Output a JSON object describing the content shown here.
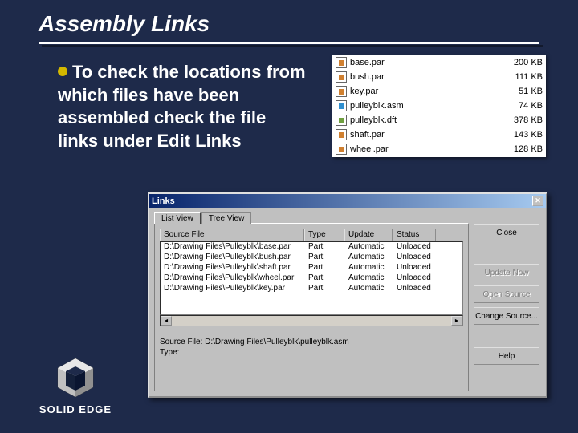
{
  "slide": {
    "title": "Assembly Links",
    "bullet_text": "To check the locations from which files have been assembled check the file links under Edit Links"
  },
  "colors": {
    "background": "#1e2a4a",
    "bullet": "#d4b800",
    "titlebar_left": "#08246b",
    "titlebar_right": "#a6caf0",
    "dialog_face": "#c0c0c0"
  },
  "file_list": {
    "rows": [
      {
        "icon": "par",
        "name": "base.par",
        "size": "200 KB"
      },
      {
        "icon": "par",
        "name": "bush.par",
        "size": "111 KB"
      },
      {
        "icon": "par",
        "name": "key.par",
        "size": "51 KB"
      },
      {
        "icon": "asm",
        "name": "pulleyblk.asm",
        "size": "74 KB"
      },
      {
        "icon": "dft",
        "name": "pulleyblk.dft",
        "size": "378 KB"
      },
      {
        "icon": "par",
        "name": "shaft.par",
        "size": "143 KB"
      },
      {
        "icon": "par",
        "name": "wheel.par",
        "size": "128 KB"
      }
    ]
  },
  "links_dialog": {
    "title": "Links",
    "tabs": {
      "active": "List View",
      "inactive": "Tree View"
    },
    "columns": {
      "source": "Source File",
      "type": "Type",
      "update": "Update",
      "status": "Status"
    },
    "rows": [
      {
        "source": "D:\\Drawing Files\\Pulleyblk\\base.par",
        "type": "Part",
        "update": "Automatic",
        "status": "Unloaded"
      },
      {
        "source": "D:\\Drawing Files\\Pulleyblk\\bush.par",
        "type": "Part",
        "update": "Automatic",
        "status": "Unloaded"
      },
      {
        "source": "D:\\Drawing Files\\Pulleyblk\\shaft.par",
        "type": "Part",
        "update": "Automatic",
        "status": "Unloaded"
      },
      {
        "source": "D:\\Drawing Files\\Pulleyblk\\wheel.par",
        "type": "Part",
        "update": "Automatic",
        "status": "Unloaded"
      },
      {
        "source": "D:\\Drawing Files\\Pulleyblk\\key.par",
        "type": "Part",
        "update": "Automatic",
        "status": "Unloaded"
      }
    ],
    "buttons": {
      "close": "Close",
      "update_now": "Update Now",
      "open_source": "Open Source",
      "change_source": "Change Source...",
      "help": "Help"
    },
    "info": {
      "source_label": "Source File:",
      "source_value": "D:\\Drawing Files\\Pulleyblk\\pulleyblk.asm",
      "type_label": "Type:"
    }
  },
  "logo_text": "SOLID EDGE"
}
